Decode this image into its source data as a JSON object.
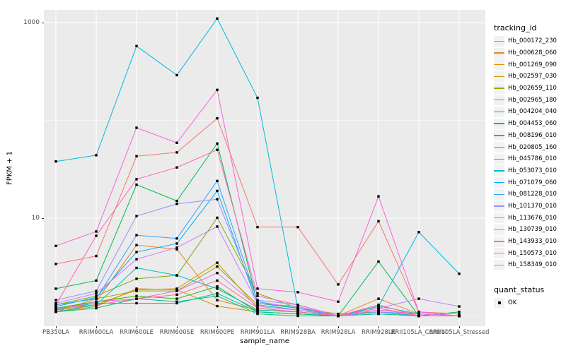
{
  "chart_data": {
    "type": "line",
    "title": "",
    "xlabel": "sample_name",
    "ylabel": "FPKM + 1",
    "y_scale": "log10",
    "y_tick_labels": [
      "1000",
      "10"
    ],
    "y_tick_values": [
      1000,
      10
    ],
    "y_minor_values": [
      100,
      1
    ],
    "ylim": [
      0.8,
      1300
    ],
    "grid": "on",
    "legend_position": "right",
    "panel_bg": "#EBEBEB",
    "grid_color": "#FFFFFF",
    "point_color": "#000000",
    "point_shape": "square",
    "categories": [
      "PB350LA",
      "RRIM600LA",
      "RRIM600LE",
      "RRIM600SE",
      "RRIM600PE",
      "RRIM901LA",
      "RRIM928BA",
      "RRIM928LA",
      "RRIM928LE",
      "RRII105LA_Control",
      "RRII105LA_Stressed"
    ],
    "series": [
      {
        "name": "Hb_000172_230",
        "color": "#F8766D",
        "values": [
          3.4,
          4.1,
          43,
          47,
          105,
          8.1,
          8.1,
          2.1,
          9.3,
          1.1,
          1.05
        ]
      },
      {
        "name": "Hb_000628_060",
        "color": "#E88526",
        "values": [
          1.2,
          1.4,
          5.3,
          4.8,
          1.45,
          1.15,
          1.1,
          1.0,
          1.5,
          1.05,
          1.0
        ]
      },
      {
        "name": "Hb_001269_090",
        "color": "#D89000",
        "values": [
          1.1,
          1.25,
          1.9,
          1.85,
          1.26,
          1.1,
          1.05,
          1.0,
          1.2,
          1.0,
          1.0
        ]
      },
      {
        "name": "Hb_002597_030",
        "color": "#C49A00",
        "values": [
          1.15,
          1.3,
          1.85,
          1.9,
          3.5,
          1.2,
          1.1,
          1.0,
          1.15,
          1.05,
          1.0
        ]
      },
      {
        "name": "Hb_002659_110",
        "color": "#A3A500",
        "values": [
          1.1,
          1.5,
          1.8,
          1.8,
          3.2,
          1.3,
          1.15,
          1.0,
          1.1,
          1.0,
          1.0
        ]
      },
      {
        "name": "Hb_002965_180",
        "color": "#7CAE00",
        "values": [
          1.3,
          1.6,
          2.4,
          2.6,
          10.1,
          1.7,
          1.2,
          1.05,
          1.1,
          1.0,
          1.0
        ]
      },
      {
        "name": "Hb_004204_040",
        "color": "#39B600",
        "values": [
          1.2,
          1.4,
          1.6,
          1.5,
          2.0,
          1.1,
          1.05,
          1.0,
          1.05,
          1.0,
          1.0
        ]
      },
      {
        "name": "Hb_004453_060",
        "color": "#00BB4E",
        "values": [
          1.9,
          2.3,
          22,
          15,
          58,
          1.35,
          1.2,
          1.0,
          3.6,
          1.0,
          1.1
        ]
      },
      {
        "name": "Hb_008196_010",
        "color": "#00BF7D",
        "values": [
          1.1,
          1.2,
          1.5,
          1.4,
          1.6,
          1.05,
          1.0,
          1.0,
          1.1,
          1.0,
          1.0
        ]
      },
      {
        "name": "Hb_020805_160",
        "color": "#00C1A3",
        "values": [
          1.17,
          1.35,
          1.35,
          1.35,
          1.7,
          1.1,
          1.05,
          1.0,
          1.05,
          1.0,
          1.0
        ]
      },
      {
        "name": "Hb_045786_010",
        "color": "#00BFC4",
        "values": [
          1.1,
          1.3,
          3.1,
          2.6,
          1.9,
          1.15,
          1.1,
          1.0,
          1.26,
          1.05,
          1.0
        ]
      },
      {
        "name": "Hb_053073_010",
        "color": "#00BAE0",
        "values": [
          38,
          44,
          575,
          290,
          1100,
          170,
          1.2,
          1.0,
          1.25,
          7.2,
          2.7
        ]
      },
      {
        "name": "Hb_071079_060",
        "color": "#00B0F6",
        "values": [
          1.25,
          1.55,
          4.5,
          5.5,
          19,
          1.3,
          1.15,
          1.0,
          1.1,
          1.05,
          1.0
        ]
      },
      {
        "name": "Hb_081228_010",
        "color": "#35A2FF",
        "values": [
          1.3,
          1.5,
          6.7,
          6.2,
          24,
          1.4,
          1.2,
          1.0,
          1.1,
          1.0,
          1.0
        ]
      },
      {
        "name": "Hb_101370_010",
        "color": "#9590FF",
        "values": [
          1.45,
          1.8,
          10.5,
          14,
          15.6,
          1.45,
          1.3,
          1.0,
          1.1,
          1.05,
          1.0
        ]
      },
      {
        "name": "Hb_113676_010",
        "color": "#C77CFF",
        "values": [
          1.35,
          1.7,
          3.8,
          5.0,
          8.2,
          1.35,
          1.25,
          1.0,
          1.2,
          1.5,
          1.25
        ]
      },
      {
        "name": "Hb_130739_010",
        "color": "#E76BF3",
        "values": [
          1.15,
          1.4,
          1.5,
          1.8,
          2.75,
          1.25,
          1.15,
          1.0,
          1.15,
          1.05,
          1.0
        ]
      },
      {
        "name": "Hb_143933_010",
        "color": "#FA62DB",
        "values": [
          5.2,
          7.3,
          84,
          59,
          205,
          1.9,
          1.75,
          1.4,
          16.7,
          1.1,
          1.0
        ]
      },
      {
        "name": "Hb_150573_010",
        "color": "#FF62BC",
        "values": [
          1.3,
          6.6,
          25,
          33,
          50,
          1.6,
          1.3,
          1.0,
          1.3,
          1.0,
          1.0
        ]
      },
      {
        "name": "Hb_158349_010",
        "color": "#FF6A98",
        "values": [
          1.2,
          1.3,
          1.5,
          1.65,
          2.3,
          1.2,
          1.1,
          1.0,
          1.2,
          1.0,
          1.0
        ]
      }
    ],
    "legend": {
      "color_title": "tracking_id",
      "shape_title": "quant_status",
      "shape_items": [
        {
          "label": "OK",
          "glyph": "black-square"
        }
      ]
    }
  }
}
